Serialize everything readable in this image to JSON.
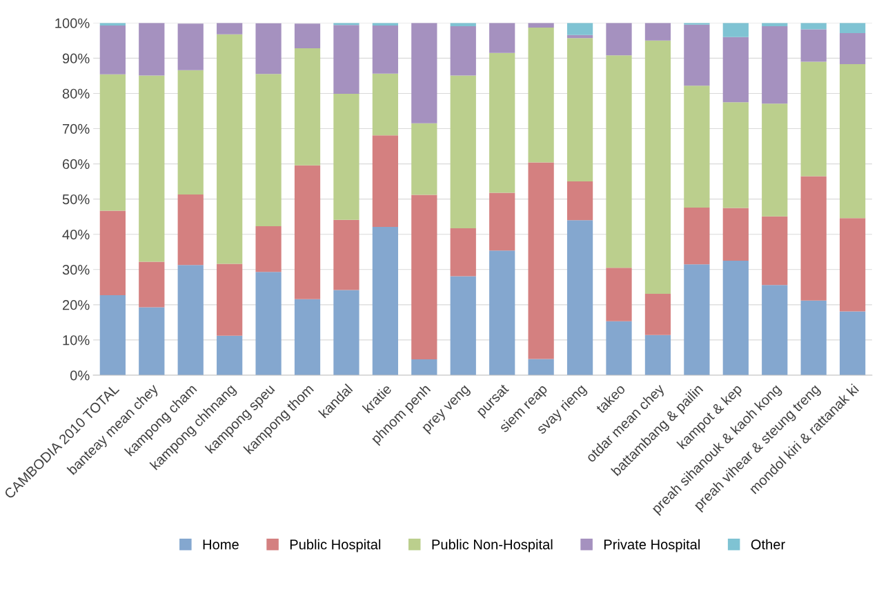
{
  "chart_data": {
    "type": "bar",
    "stacked": true,
    "categories": [
      "CAMBODIA 2010 TOTAL",
      "banteay mean chey",
      "kampong cham",
      "kampong chhnang",
      "kampong speu",
      "kampong thom",
      "kandal",
      "kratie",
      "phnom penh",
      "prey veng",
      "pursat",
      "siem reap",
      "svay rieng",
      "takeo",
      "otdar mean chey",
      "battambang & pailin",
      "kampot & kep",
      "preah sihanouk & kaoh kong",
      "preah vihear & steung treng",
      "mondol kiri & rattanak ki"
    ],
    "series": [
      {
        "name": "Home",
        "color": "#84a7cf",
        "values": [
          22.7,
          19.3,
          31.3,
          11.2,
          29.3,
          21.6,
          24.2,
          42.1,
          4.5,
          28.1,
          35.4,
          4.6,
          44.0,
          15.3,
          11.4,
          31.5,
          32.5,
          25.6,
          21.2,
          18.1
        ]
      },
      {
        "name": "Public Hospital",
        "color": "#d48080",
        "values": [
          24.0,
          12.9,
          20.0,
          20.4,
          13.0,
          38.0,
          19.9,
          26.0,
          46.7,
          13.6,
          16.4,
          55.8,
          11.0,
          15.2,
          11.7,
          16.1,
          15.0,
          19.5,
          35.3,
          26.5
        ]
      },
      {
        "name": "Public Non-Hospital",
        "color": "#bbcf8d",
        "values": [
          38.7,
          52.9,
          35.3,
          65.2,
          43.2,
          33.2,
          35.8,
          17.5,
          20.3,
          43.4,
          39.7,
          38.3,
          40.7,
          60.3,
          71.9,
          34.6,
          30.0,
          32.0,
          32.5,
          43.7
        ]
      },
      {
        "name": "Private Hospital",
        "color": "#a591bf",
        "values": [
          13.9,
          14.9,
          13.2,
          3.2,
          14.4,
          7.0,
          19.5,
          13.7,
          28.5,
          14.0,
          8.5,
          1.3,
          0.9,
          9.2,
          5.0,
          17.3,
          18.5,
          22.0,
          9.2,
          8.8
        ]
      },
      {
        "name": "Other",
        "color": "#7fc3d3",
        "values": [
          0.7,
          0,
          null,
          0,
          null,
          null,
          0.6,
          0.7,
          0,
          0.9,
          0,
          0,
          3.4,
          0,
          0,
          0.5,
          4.0,
          0.9,
          1.8,
          2.9
        ]
      }
    ],
    "ylim": [
      0,
      100
    ],
    "yticks": [
      {
        "value": 0,
        "label": "0%"
      },
      {
        "value": 10,
        "label": "10%"
      },
      {
        "value": 20,
        "label": "20%"
      },
      {
        "value": 30,
        "label": "30%"
      },
      {
        "value": 40,
        "label": "40%"
      },
      {
        "value": 50,
        "label": "50%"
      },
      {
        "value": 60,
        "label": "60%"
      },
      {
        "value": 70,
        "label": "70%"
      },
      {
        "value": 80,
        "label": "80%"
      },
      {
        "value": 90,
        "label": "90%"
      },
      {
        "value": 100,
        "label": "100%"
      }
    ],
    "grid": "y",
    "legend": "bottom"
  }
}
